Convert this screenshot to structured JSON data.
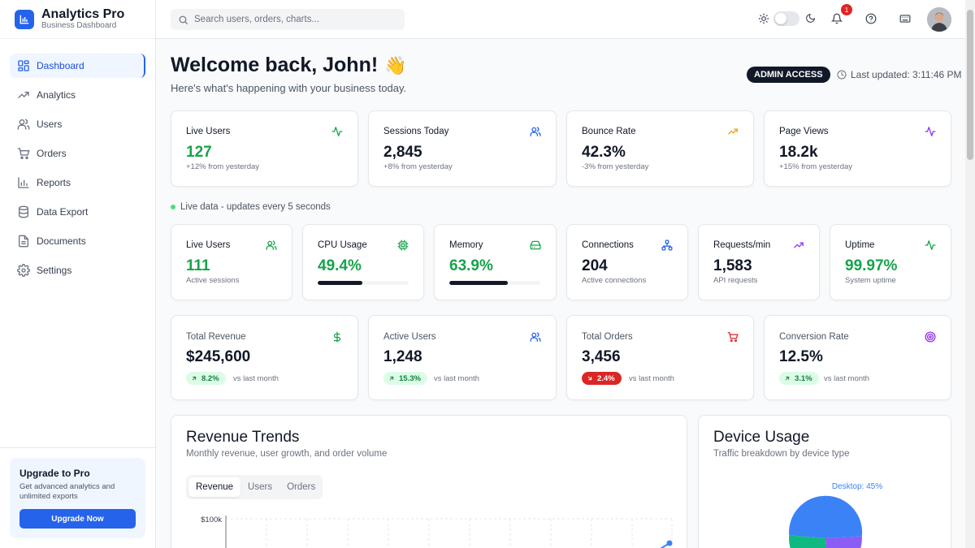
{
  "brand": {
    "title": "Analytics Pro",
    "subtitle": "Business Dashboard"
  },
  "sidebar": {
    "items": [
      {
        "label": "Dashboard",
        "icon": "dashboard-icon",
        "active": true
      },
      {
        "label": "Analytics",
        "icon": "trending-up-icon"
      },
      {
        "label": "Users",
        "icon": "users-icon"
      },
      {
        "label": "Orders",
        "icon": "cart-icon"
      },
      {
        "label": "Reports",
        "icon": "bar-chart-icon"
      },
      {
        "label": "Data Export",
        "icon": "database-icon"
      },
      {
        "label": "Documents",
        "icon": "document-icon"
      },
      {
        "label": "Settings",
        "icon": "gear-icon"
      }
    ],
    "upgrade": {
      "title": "Upgrade to Pro",
      "description": "Get advanced analytics and unlimited exports",
      "button": "Upgrade Now"
    }
  },
  "header": {
    "search_placeholder": "Search users, orders, charts...",
    "notification_count": "1"
  },
  "welcome": {
    "title": "Welcome back, John!",
    "emoji": "👋",
    "subtitle": "Here's what's happening with your business today.",
    "admin_badge": "ADMIN ACCESS",
    "last_updated": "Last updated: 3:11:46 PM"
  },
  "top_stats": [
    {
      "title": "Live Users",
      "value": "127",
      "sub": "+12% from yesterday",
      "icon": "activity-icon"
    },
    {
      "title": "Sessions Today",
      "value": "2,845",
      "sub": "+8% from yesterday",
      "icon": "users-icon"
    },
    {
      "title": "Bounce Rate",
      "value": "42.3%",
      "sub": "-3% from yesterday",
      "icon": "trending-up-icon"
    },
    {
      "title": "Page Views",
      "value": "18.2k",
      "sub": "+15% from yesterday",
      "icon": "activity-icon"
    }
  ],
  "live_note": "Live data - updates every 5 seconds",
  "live_stats": [
    {
      "title": "Live Users",
      "value": "111",
      "sub": "Active sessions",
      "icon": "users-icon"
    },
    {
      "title": "CPU Usage",
      "value": "49.4%",
      "progress": 0.494,
      "icon": "cpu-icon"
    },
    {
      "title": "Memory",
      "value": "63.9%",
      "progress": 0.639,
      "icon": "hard-drive-icon"
    },
    {
      "title": "Connections",
      "value": "204",
      "sub": "Active connections",
      "icon": "network-icon"
    },
    {
      "title": "Requests/min",
      "value": "1,583",
      "sub": "API requests",
      "icon": "trending-up-icon"
    },
    {
      "title": "Uptime",
      "value": "99.97%",
      "sub": "System uptime",
      "icon": "activity-icon"
    }
  ],
  "kpis": [
    {
      "title": "Total Revenue",
      "value": "$245,600",
      "change": "8.2%",
      "direction": "up",
      "vs": "vs last month",
      "icon": "dollar-icon"
    },
    {
      "title": "Active Users",
      "value": "1,248",
      "change": "15.3%",
      "direction": "up",
      "vs": "vs last month",
      "icon": "users-icon"
    },
    {
      "title": "Total Orders",
      "value": "3,456",
      "change": "2.4%",
      "direction": "down",
      "vs": "vs last month",
      "icon": "cart-icon"
    },
    {
      "title": "Conversion Rate",
      "value": "12.5%",
      "change": "3.1%",
      "direction": "up",
      "vs": "vs last month",
      "icon": "target-icon"
    }
  ],
  "revenue_trends": {
    "title": "Revenue Trends",
    "subtitle": "Monthly revenue, user growth, and order volume",
    "tabs": [
      "Revenue",
      "Users",
      "Orders"
    ],
    "active_tab": "Revenue",
    "y_tick_top": "$100k"
  },
  "device_usage": {
    "title": "Device Usage",
    "subtitle": "Traffic breakdown by device type",
    "desktop_label": "Desktop: 45%"
  },
  "colors": {
    "accent": "#2563eb",
    "green": "#16a34a",
    "red": "#dc2626",
    "pie_desktop": "#3b82f6",
    "pie_mobile": "#10b981",
    "pie_tablet": "#8b5cf6"
  }
}
